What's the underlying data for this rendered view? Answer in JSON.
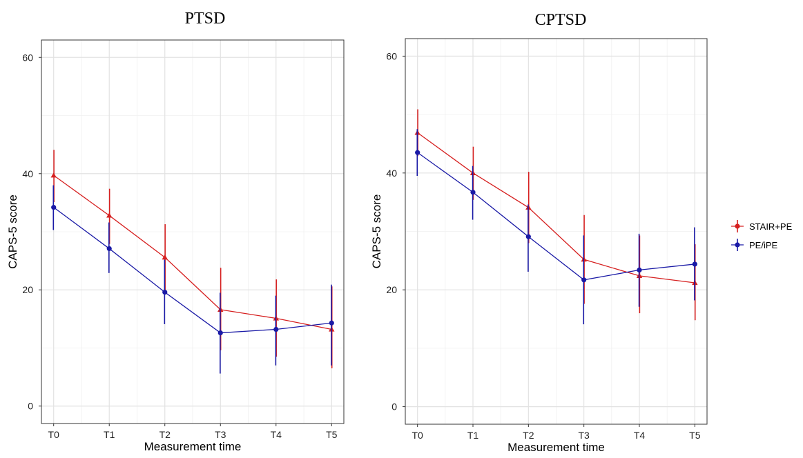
{
  "chart_data": [
    {
      "type": "line",
      "title": "PTSD",
      "xlabel": "Measurement time",
      "ylabel": "CAPS-5 score",
      "categories": [
        "T0",
        "T1",
        "T2",
        "T3",
        "T4",
        "T5"
      ],
      "ylim": [
        -3,
        63
      ],
      "yticks": [
        0,
        20,
        40,
        60
      ],
      "grid": true,
      "series": [
        {
          "name": "STAIR+PE",
          "color": "#d62020",
          "marker": "triangle",
          "values": [
            39.7,
            32.8,
            25.6,
            16.6,
            15.1,
            13.2
          ],
          "err_low": [
            35.1,
            27.9,
            19.8,
            9.6,
            8.5,
            6.5
          ],
          "err_high": [
            44.1,
            37.4,
            31.3,
            23.8,
            21.8,
            20.6
          ]
        },
        {
          "name": "PE/iPE",
          "color": "#1a1aa6",
          "marker": "circle",
          "values": [
            34.2,
            27.1,
            19.6,
            12.6,
            13.2,
            14.3
          ],
          "err_low": [
            30.3,
            22.9,
            14.1,
            5.6,
            7.0,
            7.0
          ],
          "err_high": [
            38.0,
            31.6,
            25.2,
            19.5,
            19.0,
            20.9
          ]
        }
      ]
    },
    {
      "type": "line",
      "title": "CPTSD",
      "xlabel": "Measurement time",
      "ylabel": "CAPS-5 score",
      "categories": [
        "T0",
        "T1",
        "T2",
        "T3",
        "T4",
        "T5"
      ],
      "ylim": [
        -3,
        63
      ],
      "yticks": [
        0,
        20,
        40,
        60
      ],
      "grid": true,
      "series": [
        {
          "name": "STAIR+PE",
          "color": "#d62020",
          "marker": "triangle",
          "values": [
            46.9,
            40.0,
            34.1,
            25.2,
            22.4,
            21.2
          ],
          "err_low": [
            42.9,
            35.4,
            28.0,
            17.6,
            16.0,
            14.8
          ],
          "err_high": [
            50.9,
            44.5,
            40.2,
            32.8,
            29.3,
            27.8
          ]
        },
        {
          "name": "PE/iPE",
          "color": "#1a1aa6",
          "marker": "circle",
          "values": [
            43.5,
            36.7,
            29.1,
            21.7,
            23.4,
            24.4
          ],
          "err_low": [
            39.5,
            32.0,
            23.1,
            14.1,
            17.1,
            18.2
          ],
          "err_high": [
            47.5,
            41.2,
            34.6,
            29.3,
            29.6,
            30.7
          ]
        }
      ]
    }
  ],
  "legend": {
    "position": "right",
    "items": [
      {
        "label": "STAIR+PE",
        "color": "#d62020"
      },
      {
        "label": "PE/iPE",
        "color": "#1a1aa6"
      }
    ]
  }
}
